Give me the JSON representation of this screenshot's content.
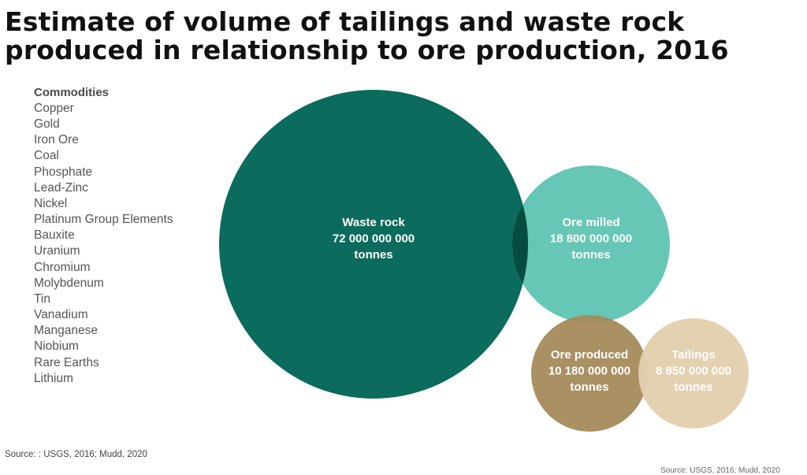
{
  "title": {
    "line1": "Estimate of volume of tailings and waste rock",
    "line2": "produced in relationship to ore production, 2016"
  },
  "commodities": {
    "heading": "Commodities",
    "items": [
      "Copper",
      "Gold",
      "Iron Ore",
      "Coal",
      "Phosphate",
      "Lead-Zinc",
      "Nickel",
      "Platinum Group Elements",
      "Bauxite",
      "Uranium",
      "Chromium",
      "Molybdenum",
      "Tin",
      "Vanadium",
      "Manganese",
      "Niobium",
      "Rare Earths",
      "Lithium"
    ]
  },
  "source": "Source: : USGS, 2016; Mudd, 2020",
  "source_cut": "Source: USGS, 2016; Mudd, 2020",
  "chart_data": {
    "type": "bubble",
    "series": [
      {
        "label": "Waste rock",
        "value_text": "72 000 000 000",
        "unit": "tonnes",
        "value": 72000000000,
        "color": "#0b6b5c"
      },
      {
        "label": "Ore milled",
        "value_text": "18 800 000 000",
        "unit": "tonnes",
        "value": 18800000000,
        "color": "#5ec4b2"
      },
      {
        "label": "Ore produced",
        "value_text": "10 180 000 000",
        "unit": "tonnes",
        "value": 10180000000,
        "color": "#a48b5c"
      },
      {
        "label": "Tailings",
        "value_text": "8 850 000 000",
        "unit": "tonnes",
        "value": 8850000000,
        "color": "#e3cfae"
      }
    ]
  }
}
